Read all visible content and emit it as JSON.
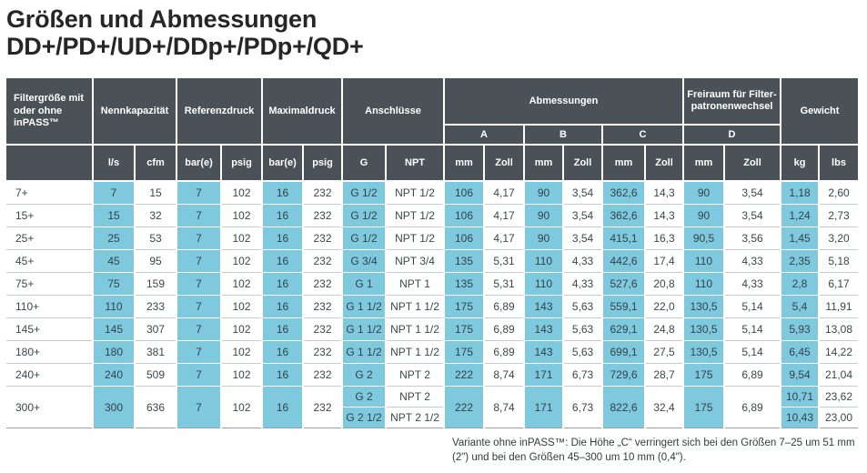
{
  "title": {
    "line1": "Größen und Abmessungen",
    "line2": "DD+/PD+/UD+/DDp+/PDp+/QD+"
  },
  "colors": {
    "header_bg": "#4a5257",
    "accent_cyan": "#7ec9dd",
    "row_line": "#c7cccd",
    "table_bottom_line": "#9ba2a5"
  },
  "table": {
    "group_headers": {
      "filter_size": "Filtergröße mit oder ohne inPASS™",
      "nominal_capacity": "Nennkapazität",
      "reference_pressure": "Referenzdruck",
      "max_pressure": "Maximaldruck",
      "connections": "Anschlüsse",
      "dimensions": "Abmessungen",
      "clearance": "Freiraum für Filter-patronenwechsel",
      "weight": "Gewicht"
    },
    "dims": [
      "A",
      "B",
      "C",
      "D"
    ],
    "units": [
      "l/s",
      "cfm",
      "bar(e)",
      "psig",
      "bar(e)",
      "psig",
      "G",
      "NPT",
      "mm",
      "Zoll",
      "mm",
      "Zoll",
      "mm",
      "Zoll",
      "mm",
      "Zoll",
      "kg",
      "lbs"
    ],
    "rows": [
      [
        "7+",
        "7",
        "15",
        "7",
        "102",
        "16",
        "232",
        "G 1/2",
        "NPT 1/2",
        "106",
        "4,17",
        "90",
        "3,54",
        "362,6",
        "14,3",
        "90",
        "3,54",
        "1,18",
        "2,60"
      ],
      [
        "15+",
        "15",
        "32",
        "7",
        "102",
        "16",
        "232",
        "G 1/2",
        "NPT 1/2",
        "106",
        "4,17",
        "90",
        "3,54",
        "362,6",
        "14,3",
        "90",
        "3,54",
        "1,24",
        "2,73"
      ],
      [
        "25+",
        "25",
        "53",
        "7",
        "102",
        "16",
        "232",
        "G 1/2",
        "NPT 1/2",
        "106",
        "4,17",
        "90",
        "3,54",
        "415,1",
        "16,3",
        "90,5",
        "3,56",
        "1,45",
        "3,20"
      ],
      [
        "45+",
        "45",
        "95",
        "7",
        "102",
        "16",
        "232",
        "G 3/4",
        "NPT 3/4",
        "135",
        "5,31",
        "110",
        "4,33",
        "442,6",
        "17,4",
        "110",
        "4,33",
        "2,35",
        "5,18"
      ],
      [
        "75+",
        "75",
        "159",
        "7",
        "102",
        "16",
        "232",
        "G 1",
        "NPT 1",
        "135",
        "5,31",
        "110",
        "4,33",
        "527,6",
        "20,8",
        "110",
        "4,33",
        "2,8",
        "6,17"
      ],
      [
        "110+",
        "110",
        "233",
        "7",
        "102",
        "16",
        "232",
        "G 1 1/2",
        "NPT 1 1/2",
        "175",
        "6,89",
        "143",
        "5,63",
        "559,1",
        "22,0",
        "130,5",
        "5,14",
        "5,4",
        "11,91"
      ],
      [
        "145+",
        "145",
        "307",
        "7",
        "102",
        "16",
        "232",
        "G 1 1/2",
        "NPT 1 1/2",
        "175",
        "6,89",
        "143",
        "5,63",
        "629,1",
        "24,8",
        "130,5",
        "5,14",
        "5,93",
        "13,08"
      ],
      [
        "180+",
        "180",
        "381",
        "7",
        "102",
        "16",
        "232",
        "G 1 1/2",
        "NPT 1 1/2",
        "175",
        "6,89",
        "143",
        "5,63",
        "699,1",
        "27,5",
        "130,5",
        "5,14",
        "6,45",
        "14,22"
      ],
      [
        "240+",
        "240",
        "509",
        "7",
        "102",
        "16",
        "232",
        "G 2",
        "NPT 2",
        "222",
        "8,74",
        "171",
        "6,73",
        "729,6",
        "28,7",
        "175",
        "6,89",
        "9,54",
        "21,04"
      ]
    ],
    "last_row": {
      "label": "300+",
      "ls": "300",
      "cfm": "636",
      "bare": "7",
      "psig": "102",
      "bare2": "16",
      "psig2": "232",
      "g": [
        "G 2",
        "G 2 1/2"
      ],
      "npt": [
        "NPT 2",
        "NPT 2 1/2"
      ],
      "a_mm": "222",
      "a_zoll": "8,74",
      "b_mm": "171",
      "b_zoll": "6,73",
      "c_mm": "822,6",
      "c_zoll": "32,4",
      "d_mm": "175",
      "d_zoll": "6,89",
      "kg": [
        "10,71",
        "10,43"
      ],
      "lbs": [
        "23,62",
        "23,00"
      ]
    }
  },
  "footnote": "Variante ohne inPASS™: Die Höhe „C“ verringert sich bei den Größen 7–25 um 51 mm (2\") und bei den Größen 45–300 um 10 mm (0,4\")."
}
